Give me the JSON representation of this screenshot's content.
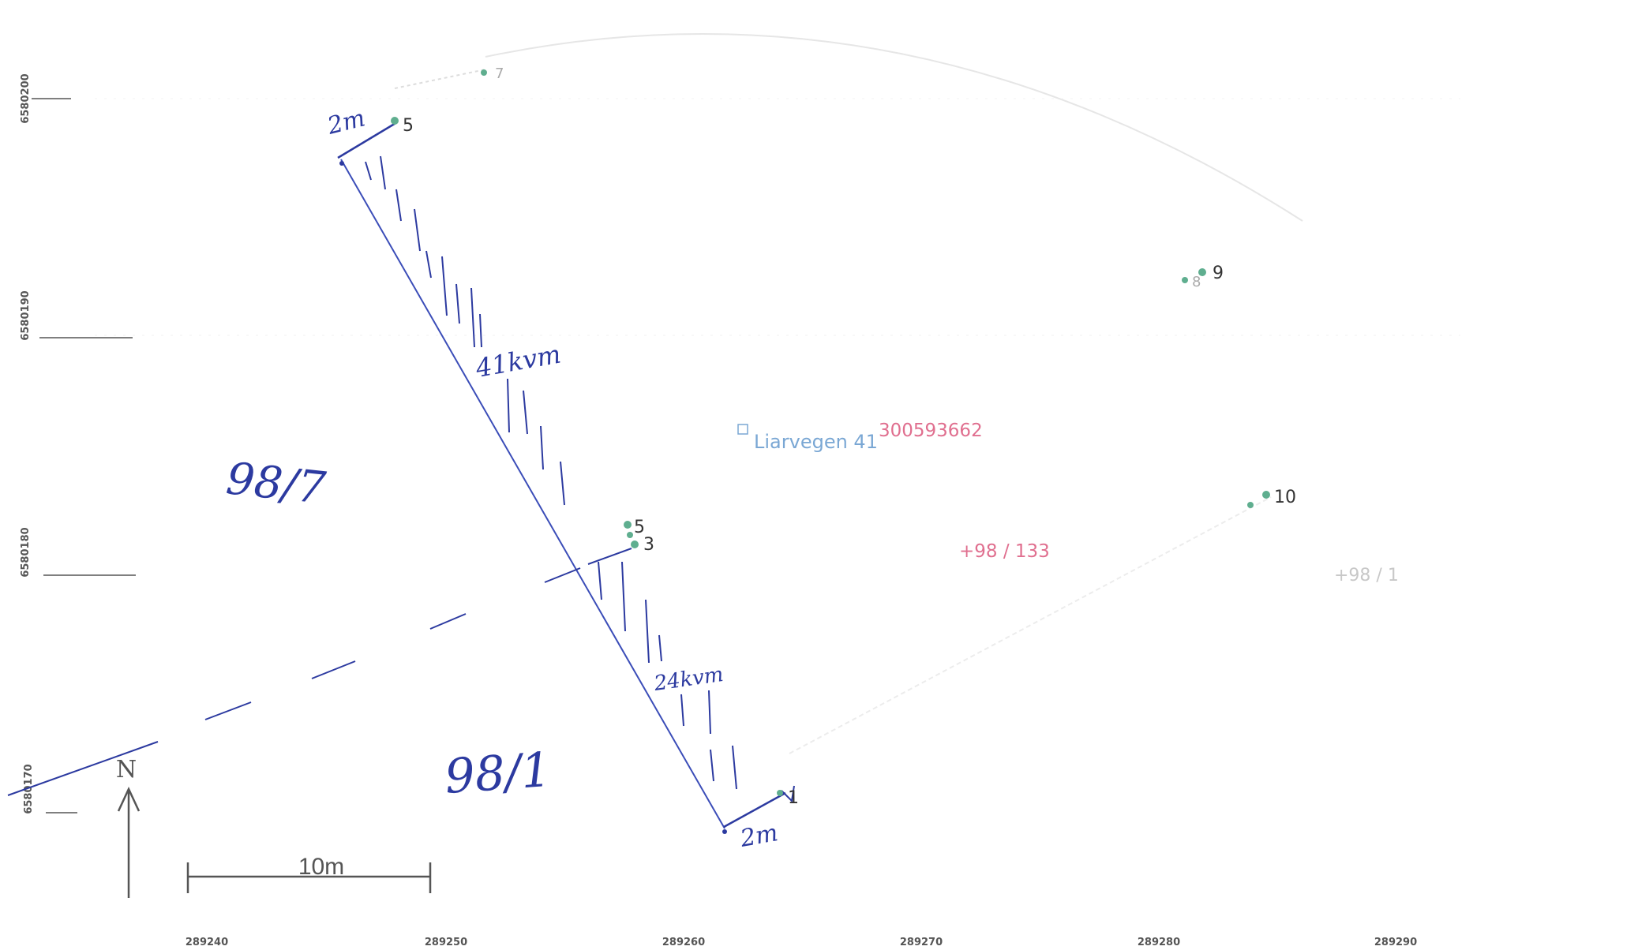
{
  "map": {
    "y_axis_labels": [
      "6580200",
      "6580190",
      "6580180",
      "6580170"
    ],
    "x_axis_labels": [
      "289240",
      "289250",
      "289260",
      "289270",
      "289280",
      "289290"
    ],
    "point_labels": {
      "p7": "7",
      "p5_top": "5",
      "p9": "9",
      "p8": "8",
      "p10": "10",
      "p5_mid": "5",
      "p3": "3",
      "p1": "1"
    },
    "address": "Liarvegen 41",
    "address_id": "300593662",
    "parcel_red": "+98 / 133",
    "parcel_grey": "+98 / 1",
    "handwriting": {
      "top_width": "2m",
      "bottom_width": "2m",
      "volume_upper": "41kvm",
      "volume_lower": "24kvm",
      "parcel_left_upper": "98/7",
      "parcel_left_lower": "98/1"
    },
    "north_label": "N",
    "scale_label": "10m",
    "colors": {
      "ink": "#2c3aa0",
      "point": "#5fae8f",
      "address": "#7aa7d4",
      "parcel": "#e06f8f",
      "grid": "#666666"
    }
  }
}
